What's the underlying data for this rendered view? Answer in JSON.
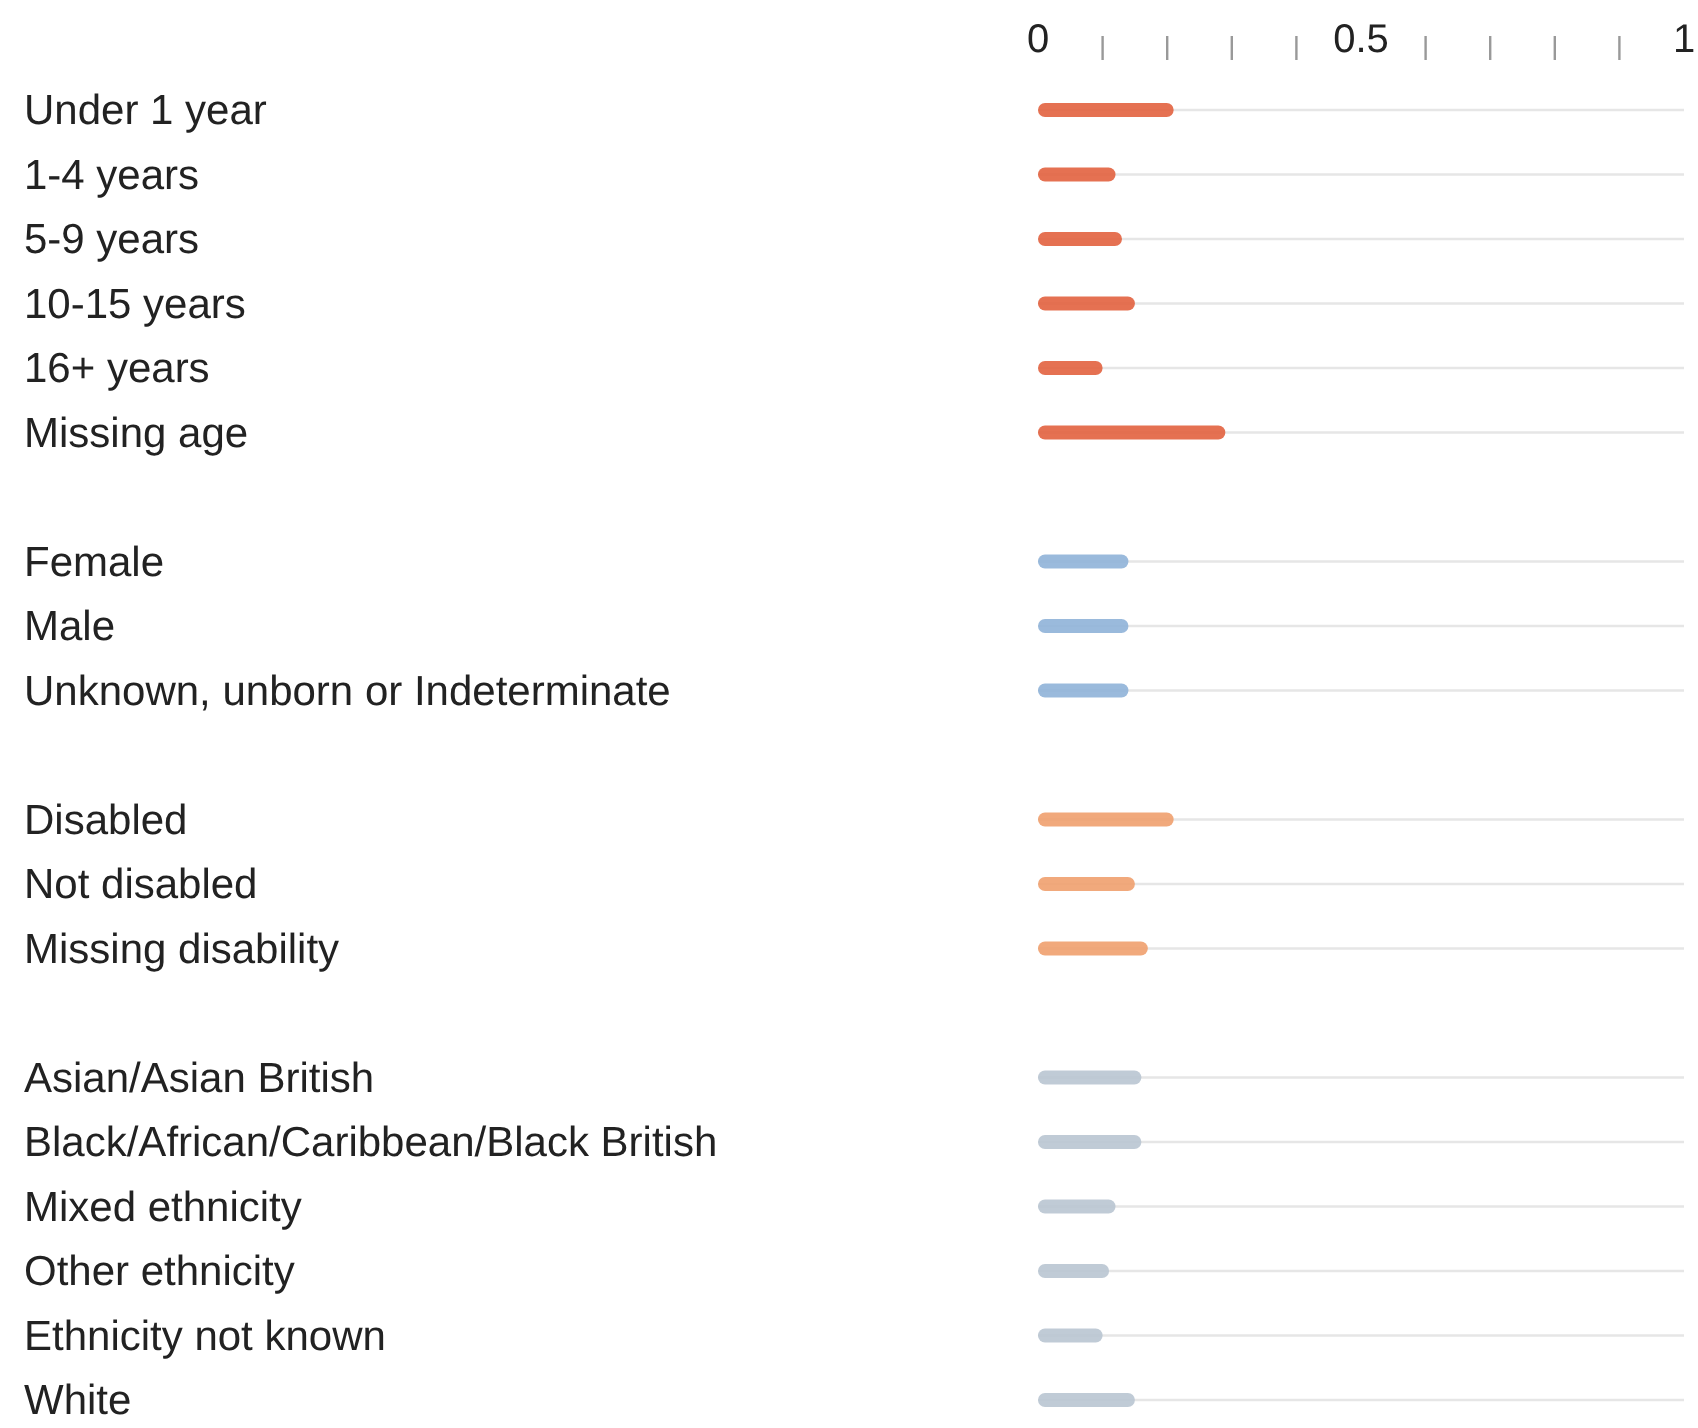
{
  "chart_data": {
    "type": "bar",
    "orientation": "horizontal",
    "categories": [
      "Under 1 year",
      "1-4 years",
      "5-9 years",
      "10-15 years",
      "16+ years",
      "Missing age",
      null,
      "Female",
      "Male",
      "Unknown, unborn or Indeterminate",
      null,
      "Disabled",
      "Not disabled",
      "Missing disability",
      null,
      "Asian/Asian British",
      "Black/African/Caribbean/Black British",
      "Mixed ethnicity",
      "Other ethnicity",
      "Ethnicity not known",
      "White"
    ],
    "series": [
      {
        "axis": "x2",
        "values": [
          0.21,
          0.12,
          0.13,
          0.15,
          0.1,
          0.29,
          null,
          0.14,
          0.14,
          0.14,
          null,
          0.21,
          0.15,
          0.17,
          null,
          0.16,
          0.16,
          0.12,
          0.11,
          0.1,
          0.15
        ],
        "colors": [
          "#e2623f",
          "#e2623f",
          "#e2623f",
          "#e2623f",
          "#e2623f",
          "#e2623f",
          null,
          "#8fb3d8",
          "#8fb3d8",
          "#8fb3d8",
          null,
          "#f0a06e",
          "#f0a06e",
          "#f0a06e",
          null,
          "#b9c5d1",
          "#b9c5d1",
          "#b9c5d1",
          "#b9c5d1",
          "#b9c5d1",
          "#b9c5d1"
        ]
      }
    ],
    "x2lim": [
      0,
      1
    ],
    "x2ticks": [
      0,
      {
        "value": 0.1,
        "label": null
      },
      {
        "value": 0.2,
        "label": null
      },
      {
        "value": 0.3,
        "label": null
      },
      {
        "value": 0.4,
        "label": null
      },
      0.5,
      {
        "value": 0.6,
        "label": null
      },
      {
        "value": 0.7,
        "label": null
      },
      {
        "value": 0.8,
        "label": null
      },
      {
        "value": 0.9,
        "label": null
      },
      1
    ],
    "grid": "y"
  }
}
